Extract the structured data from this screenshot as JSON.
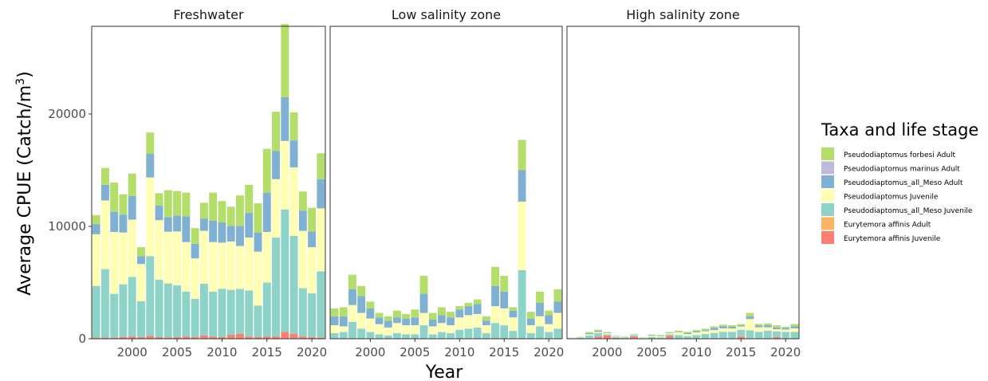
{
  "chart_data": {
    "type": "bar",
    "stacked": true,
    "y_axis_label": "Average CPUE (Catch/m",
    "y_axis_label_sup": "3",
    "y_axis_label_close": ")",
    "x_axis_label": "Year",
    "ylim": [
      0,
      27800
    ],
    "xlim": [
      1995.5,
      2021.5
    ],
    "y_ticks": [
      {
        "value": 0,
        "label": "0"
      },
      {
        "value": 10000,
        "label": "10000"
      },
      {
        "value": 20000,
        "label": "20000"
      }
    ],
    "x_ticks": [
      {
        "value": 2000,
        "label": "2000"
      },
      {
        "value": 2005,
        "label": "2005"
      },
      {
        "value": 2010,
        "label": "2010"
      },
      {
        "value": 2015,
        "label": "2015"
      },
      {
        "value": 2020,
        "label": "2020"
      }
    ],
    "legend": {
      "title": "Taxa and life stage",
      "position": "right",
      "entries": [
        {
          "key": "pf_adult",
          "label": "Pseudodiaptomus forbesi Adult",
          "color": "#b3de69"
        },
        {
          "key": "pm_adult",
          "label": "Pseudodiaptomus marinus Adult",
          "color": "#bebada"
        },
        {
          "key": "pm_meso_adult",
          "label": "Pseudodiaptomus_all_Meso Adult",
          "color": "#80b1d3"
        },
        {
          "key": "p_juv",
          "label": "Pseudodiaptomus Juvenile",
          "color": "#ffffb3"
        },
        {
          "key": "pm_meso_juv",
          "label": "Pseudodiaptomus_all_Meso Juvenile",
          "color": "#8dd3c7"
        },
        {
          "key": "ea_adult",
          "label": "Eurytemora affinis Adult",
          "color": "#fdb462"
        },
        {
          "key": "ea_juv",
          "label": "Eurytemora affinis Juvenile",
          "color": "#fb8072"
        }
      ]
    },
    "stack_order": [
      "ea_juv",
      "ea_adult",
      "pm_meso_juv",
      "p_juv",
      "pm_meso_adult",
      "pm_adult",
      "pf_adult"
    ],
    "years": [
      1996,
      1997,
      1998,
      1999,
      2000,
      2001,
      2002,
      2003,
      2004,
      2005,
      2006,
      2007,
      2008,
      2009,
      2010,
      2011,
      2012,
      2013,
      2014,
      2015,
      2016,
      2017,
      2018,
      2019,
      2020,
      2021
    ],
    "panels": [
      {
        "title": "Freshwater",
        "series": {
          "ea_juv": [
            100,
            100,
            100,
            150,
            200,
            150,
            250,
            150,
            120,
            150,
            200,
            150,
            300,
            200,
            150,
            350,
            450,
            200,
            150,
            200,
            200,
            600,
            450,
            200,
            150,
            100
          ],
          "ea_adult": [
            0,
            0,
            0,
            0,
            0,
            0,
            0,
            0,
            0,
            0,
            0,
            0,
            0,
            0,
            0,
            0,
            0,
            0,
            0,
            0,
            0,
            0,
            0,
            0,
            0,
            0
          ],
          "pm_meso_juv": [
            4600,
            6100,
            3900,
            4700,
            5300,
            3200,
            7100,
            5100,
            4800,
            4600,
            4000,
            3400,
            4600,
            4000,
            4300,
            4000,
            4000,
            4100,
            2800,
            4800,
            8800,
            10900,
            8700,
            4300,
            3900,
            5900
          ],
          "p_juv": [
            4600,
            6100,
            5500,
            4600,
            5100,
            3300,
            7000,
            5300,
            4600,
            4800,
            4400,
            3600,
            4700,
            4400,
            4100,
            4300,
            3800,
            4700,
            4800,
            4500,
            5200,
            6100,
            6100,
            5100,
            4100,
            5600
          ],
          "pm_meso_adult": [
            900,
            1400,
            1800,
            1600,
            2100,
            700,
            2100,
            1300,
            1300,
            1400,
            2300,
            1300,
            1100,
            1900,
            1800,
            1400,
            1800,
            2200,
            1700,
            3500,
            2500,
            3900,
            2400,
            1800,
            1400,
            2600
          ],
          "pm_adult": [
            0,
            0,
            0,
            0,
            0,
            0,
            0,
            0,
            0,
            0,
            0,
            0,
            0,
            0,
            0,
            0,
            0,
            0,
            0,
            0,
            0,
            0,
            0,
            0,
            0,
            0
          ],
          "pf_adult": [
            800,
            1500,
            2600,
            1800,
            2000,
            800,
            1900,
            1100,
            2400,
            2200,
            2100,
            1400,
            1400,
            2500,
            1900,
            1700,
            2700,
            2500,
            2600,
            3900,
            3500,
            6500,
            2500,
            1700,
            2100,
            2300
          ]
        }
      },
      {
        "title": "Low salinity zone",
        "series": {
          "ea_juv": [
            10,
            10,
            10,
            10,
            10,
            10,
            10,
            10,
            10,
            10,
            10,
            10,
            10,
            10,
            10,
            10,
            10,
            10,
            10,
            10,
            10,
            10,
            10,
            10,
            10,
            10
          ],
          "ea_adult": [
            0,
            0,
            0,
            0,
            0,
            0,
            0,
            0,
            0,
            0,
            0,
            0,
            0,
            0,
            0,
            0,
            0,
            0,
            0,
            0,
            0,
            0,
            0,
            0,
            0,
            0
          ],
          "pm_meso_juv": [
            490,
            590,
            1490,
            890,
            590,
            390,
            290,
            490,
            390,
            390,
            1190,
            390,
            590,
            490,
            790,
            890,
            990,
            490,
            1390,
            1190,
            690,
            6090,
            490,
            1090,
            590,
            890
          ],
          "p_juv": [
            700,
            500,
            1500,
            1400,
            1200,
            900,
            700,
            900,
            800,
            800,
            1100,
            700,
            800,
            700,
            1100,
            1200,
            1200,
            700,
            1500,
            1500,
            1200,
            6100,
            700,
            900,
            700,
            1400
          ],
          "pm_meso_adult": [
            800,
            900,
            1400,
            1500,
            900,
            600,
            600,
            500,
            600,
            700,
            1700,
            600,
            700,
            700,
            700,
            800,
            900,
            400,
            1800,
            1500,
            600,
            2800,
            600,
            1200,
            800,
            1000
          ],
          "pm_adult": [
            0,
            0,
            0,
            0,
            0,
            0,
            0,
            0,
            0,
            0,
            0,
            0,
            0,
            0,
            0,
            0,
            0,
            0,
            0,
            0,
            0,
            0,
            0,
            0,
            0,
            0
          ],
          "pf_adult": [
            700,
            800,
            1300,
            900,
            600,
            400,
            400,
            600,
            400,
            700,
            1600,
            600,
            700,
            500,
            300,
            300,
            400,
            400,
            1700,
            1400,
            300,
            2700,
            600,
            1000,
            400,
            1100
          ]
        }
      },
      {
        "title": "High salinity zone",
        "series": {
          "ea_juv": [
            20,
            20,
            50,
            200,
            300,
            80,
            30,
            200,
            20,
            20,
            30,
            250,
            20,
            20,
            20,
            20,
            20,
            20,
            20,
            200,
            50,
            20,
            20,
            150,
            20,
            20
          ],
          "ea_adult": [
            0,
            0,
            0,
            0,
            0,
            0,
            0,
            0,
            0,
            0,
            0,
            0,
            0,
            0,
            0,
            0,
            0,
            0,
            0,
            0,
            0,
            0,
            0,
            0,
            0,
            0
          ],
          "pm_meso_juv": [
            30,
            80,
            250,
            300,
            100,
            60,
            100,
            120,
            40,
            150,
            100,
            150,
            300,
            200,
            300,
            400,
            500,
            600,
            600,
            600,
            700,
            600,
            700,
            500,
            600,
            600
          ],
          "p_juv": [
            20,
            30,
            100,
            100,
            100,
            60,
            50,
            50,
            40,
            100,
            100,
            100,
            250,
            200,
            250,
            250,
            250,
            300,
            300,
            300,
            1000,
            400,
            300,
            200,
            200,
            300
          ],
          "pm_meso_adult": [
            10,
            20,
            100,
            100,
            50,
            40,
            20,
            20,
            20,
            50,
            50,
            50,
            50,
            100,
            100,
            100,
            200,
            200,
            150,
            100,
            250,
            150,
            200,
            150,
            150,
            200
          ],
          "pm_adult": [
            0,
            0,
            0,
            0,
            0,
            0,
            0,
            0,
            0,
            0,
            0,
            0,
            0,
            0,
            0,
            0,
            0,
            0,
            0,
            0,
            0,
            0,
            0,
            0,
            0,
            0
          ],
          "pf_adult": [
            20,
            30,
            100,
            100,
            50,
            20,
            20,
            20,
            20,
            50,
            50,
            50,
            100,
            100,
            100,
            130,
            130,
            130,
            130,
            100,
            300,
            150,
            150,
            200,
            100,
            180
          ]
        }
      }
    ]
  }
}
